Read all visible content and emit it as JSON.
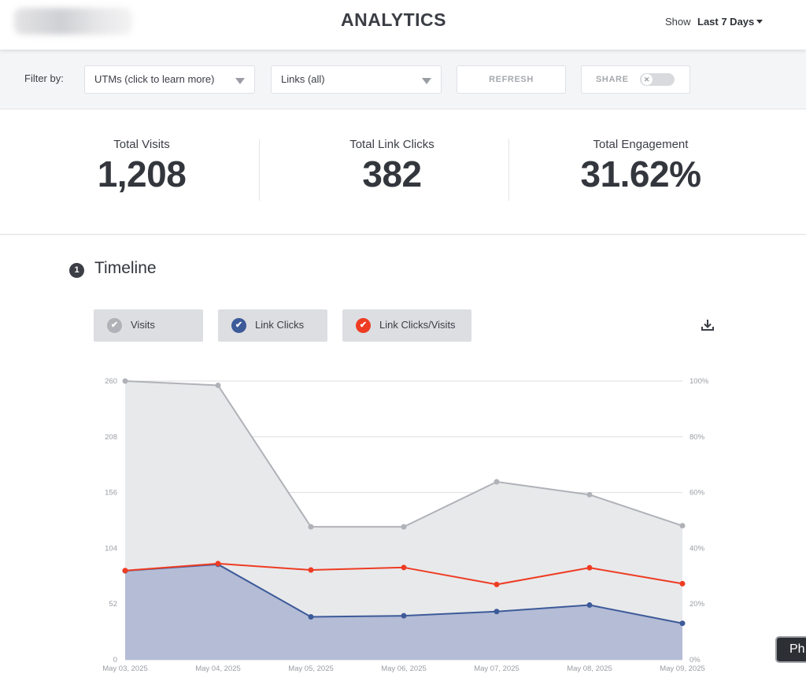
{
  "header": {
    "title": "ANALYTICS",
    "show_label": "Show",
    "range_label": "Last 7 Days"
  },
  "filters": {
    "label": "Filter by:",
    "utm_select": "UTMs (click to learn more)",
    "links_select": "Links (all)",
    "refresh_label": "REFRESH",
    "share_label": "SHARE"
  },
  "stats": [
    {
      "label": "Total Visits",
      "value": "1,208"
    },
    {
      "label": "Total Link Clicks",
      "value": "382"
    },
    {
      "label": "Total Engagement",
      "value": "31.62%"
    }
  ],
  "timeline": {
    "section_number": "1",
    "title": "Timeline",
    "legend": [
      {
        "label": "Visits",
        "color": "#b0b2b8"
      },
      {
        "label": "Link Clicks",
        "color": "#3d5a99"
      },
      {
        "label": "Link Clicks/Visits",
        "color": "#ee3c23"
      }
    ]
  },
  "chart_data": {
    "type": "line",
    "title": "",
    "xlabel": "",
    "ylabel": "",
    "ylim": [
      0,
      260
    ],
    "y2lim": [
      0,
      100
    ],
    "grid": true,
    "legend_position": "top-left",
    "categories": [
      "May 03, 2025",
      "May 04, 2025",
      "May 05, 2025",
      "May 06, 2025",
      "May 07, 2025",
      "May 08, 2025",
      "May 09, 2025"
    ],
    "y_ticks": [
      "0",
      "52",
      "104",
      "156",
      "208",
      "260"
    ],
    "y2_ticks": [
      "0%",
      "20%",
      "40%",
      "60%",
      "80%",
      "100%"
    ],
    "series": [
      {
        "name": "Visits",
        "axis": "left",
        "fill": true,
        "color": "#b0b2b8",
        "values": [
          260,
          256,
          124,
          124,
          166,
          154,
          125
        ]
      },
      {
        "name": "Link Clicks",
        "axis": "left",
        "fill": true,
        "color": "#3d5a99",
        "values": [
          83,
          89,
          40,
          41,
          45,
          51,
          34
        ]
      },
      {
        "name": "Link Clicks/Visits",
        "axis": "right",
        "fill": false,
        "color": "#ee3c23",
        "values": [
          32,
          34.5,
          32.2,
          33.1,
          27,
          33,
          27.3
        ]
      }
    ]
  },
  "tooltip": {
    "text": "Ph"
  }
}
